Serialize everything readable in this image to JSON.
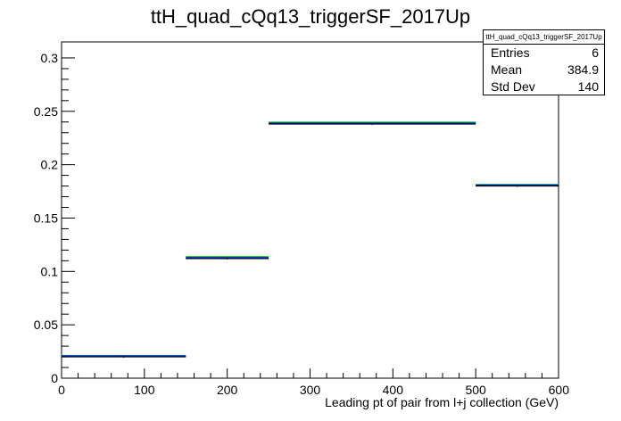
{
  "chart_data": {
    "type": "bar",
    "title": "ttH_quad_cQq13_triggerSF_2017Up",
    "xlabel": "Leading pt of pair from l+j collection (GeV)",
    "ylabel": "",
    "xlim": [
      0,
      600
    ],
    "ylim": [
      0,
      0.315
    ],
    "x_ticks": [
      "0",
      "100",
      "200",
      "300",
      "400",
      "500",
      "600"
    ],
    "y_ticks": [
      "0",
      "0.05",
      "0.1",
      "0.15",
      "0.2",
      "0.25",
      "0.3"
    ],
    "bins": [
      {
        "low": 0,
        "high": 150,
        "value": 0.02
      },
      {
        "low": 150,
        "high": 250,
        "value": 0.112
      },
      {
        "low": 250,
        "high": 500,
        "value": 0.238
      },
      {
        "low": 500,
        "high": 600,
        "value": 0.18
      }
    ],
    "series": [
      {
        "color": "#000000",
        "values": [
          0.02,
          0.112,
          0.238,
          0.18
        ]
      },
      {
        "color": "#0000ff",
        "values": [
          0.0205,
          0.1125,
          0.2385,
          0.1805
        ]
      },
      {
        "color": "#00c800",
        "values": [
          0.021,
          0.1135,
          0.2395,
          0.1812
        ]
      }
    ],
    "grid": false,
    "stats": {
      "title": "ttH_quad_cQq13_triggerSF_2017Up",
      "entries_label": "Entries",
      "entries": "6",
      "mean_label": "Mean",
      "mean": "384.9",
      "std_label": "Std Dev",
      "std": "140"
    }
  }
}
